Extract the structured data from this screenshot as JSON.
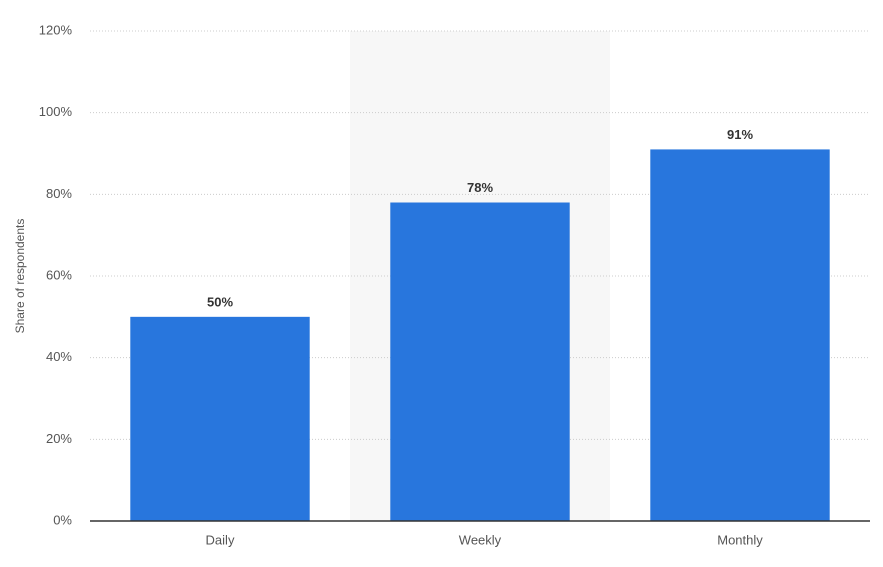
{
  "chart_data": {
    "type": "bar",
    "y_label": "Share of respondents",
    "categories": [
      "Daily",
      "Weekly",
      "Monthly"
    ],
    "values": [
      50,
      78,
      91
    ],
    "value_labels": [
      "50%",
      "78%",
      "91%"
    ],
    "color": "#2876dd",
    "ylim": [
      0,
      120
    ],
    "yticks": [
      {
        "value": 0,
        "label": "0%"
      },
      {
        "value": 20,
        "label": "20%"
      },
      {
        "value": 40,
        "label": "40%"
      },
      {
        "value": 60,
        "label": "60%"
      },
      {
        "value": 80,
        "label": "80%"
      },
      {
        "value": 100,
        "label": "100%"
      },
      {
        "value": 120,
        "label": "120%"
      }
    ],
    "grid": true
  }
}
